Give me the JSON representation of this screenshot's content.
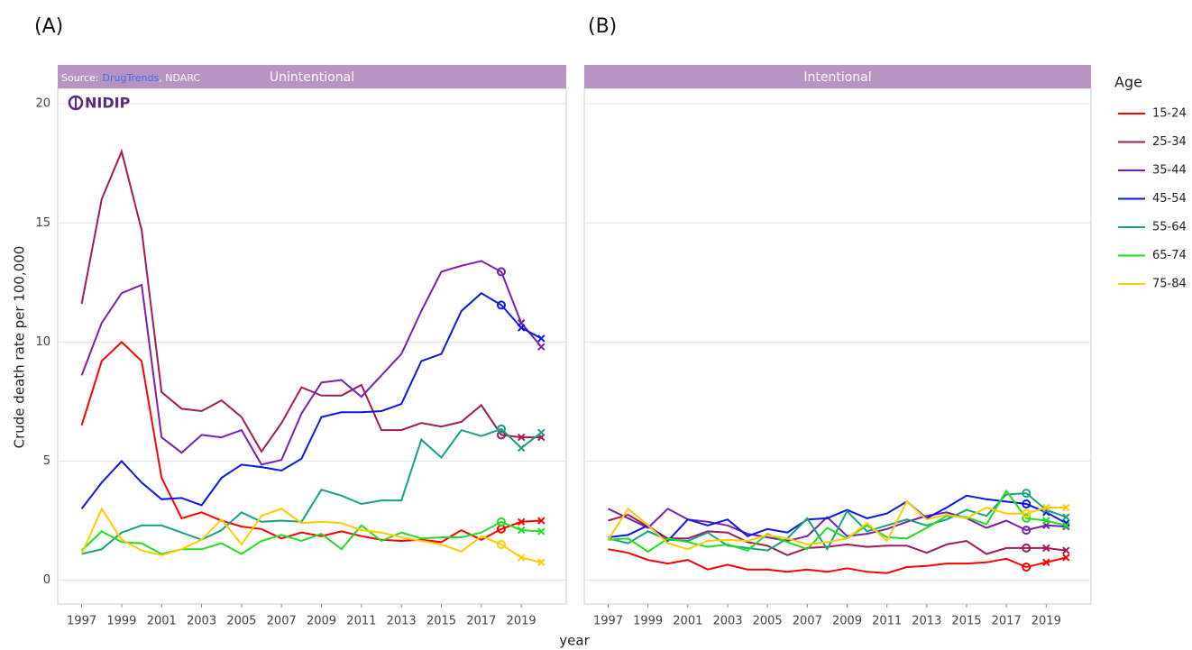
{
  "panel_labels": [
    "(A)",
    "(B)"
  ],
  "y_label": "Crude death rate per 100,000",
  "x_label": "year",
  "legend_title": "Age",
  "source": {
    "prefix": "Source:",
    "link": "DrugTrends",
    "suffix": ", NDARC"
  },
  "logo": "NIDIP",
  "chart_data": [
    {
      "type": "line",
      "title": "Unintentional",
      "x": [
        1997,
        1998,
        1999,
        2000,
        2001,
        2002,
        2003,
        2004,
        2005,
        2006,
        2007,
        2008,
        2009,
        2010,
        2011,
        2012,
        2013,
        2014,
        2015,
        2016,
        2017,
        2018,
        2019,
        2020
      ],
      "xlim": [
        1995.8,
        2021.25
      ],
      "ylim": [
        -1,
        20.65
      ],
      "xticks": [
        1997,
        1999,
        2001,
        2003,
        2005,
        2007,
        2009,
        2011,
        2013,
        2015,
        2017,
        2019
      ],
      "yticks": [
        0,
        5,
        10,
        15,
        20
      ],
      "grid": true,
      "marker_x": [
        2018,
        2019,
        2020
      ],
      "marker_shapes": [
        "circle",
        "cross",
        "cross"
      ],
      "series": [
        {
          "name": "15-24",
          "color": "#ff0000",
          "values": [
            6.5,
            9.2,
            10.0,
            9.2,
            4.3,
            2.6,
            2.85,
            2.5,
            2.25,
            2.15,
            1.75,
            2.0,
            1.85,
            2.05,
            1.85,
            1.7,
            1.65,
            1.7,
            1.6,
            2.1,
            1.7,
            2.15,
            2.45,
            2.5
          ]
        },
        {
          "name": "25-34",
          "color": "#a3195b",
          "values": [
            11.6,
            16.0,
            18.0,
            14.7,
            7.9,
            7.2,
            7.1,
            7.55,
            6.85,
            5.4,
            6.6,
            8.1,
            7.75,
            7.75,
            8.2,
            6.3,
            6.3,
            6.6,
            6.45,
            6.65,
            7.35,
            6.1,
            6.0,
            6.0
          ]
        },
        {
          "name": "35-44",
          "color": "#7a1fb0",
          "values": [
            8.6,
            10.8,
            12.05,
            12.4,
            6.0,
            5.35,
            6.1,
            6.0,
            6.3,
            4.85,
            5.05,
            7.0,
            8.3,
            8.4,
            7.7,
            8.6,
            9.5,
            11.3,
            12.95,
            13.2,
            13.4,
            12.95,
            10.8,
            9.8
          ]
        },
        {
          "name": "45-54",
          "color": "#0a17e8",
          "values": [
            3.0,
            4.1,
            5.0,
            4.1,
            3.4,
            3.45,
            3.15,
            4.3,
            4.85,
            4.75,
            4.6,
            5.1,
            6.85,
            7.05,
            7.05,
            7.1,
            7.4,
            9.2,
            9.5,
            11.3,
            12.05,
            11.55,
            10.6,
            10.15
          ]
        },
        {
          "name": "55-64",
          "color": "#17a085",
          "values": [
            1.1,
            1.3,
            2.0,
            2.3,
            2.3,
            2.0,
            1.7,
            2.1,
            2.85,
            2.45,
            2.5,
            2.45,
            3.8,
            3.55,
            3.2,
            3.35,
            3.35,
            5.9,
            5.15,
            6.3,
            6.05,
            6.35,
            5.55,
            6.2
          ]
        },
        {
          "name": "65-74",
          "color": "#22dd22",
          "values": [
            1.25,
            2.05,
            1.6,
            1.55,
            1.1,
            1.3,
            1.3,
            1.55,
            1.1,
            1.65,
            1.9,
            1.65,
            1.95,
            1.3,
            2.3,
            1.65,
            2.0,
            1.75,
            1.8,
            1.8,
            2.0,
            2.45,
            2.1,
            2.05
          ]
        },
        {
          "name": "75-84",
          "color": "#ffcc00",
          "values": [
            1.1,
            3.0,
            1.7,
            1.25,
            1.05,
            1.3,
            1.7,
            2.55,
            1.5,
            2.7,
            3.0,
            2.4,
            2.45,
            2.4,
            2.1,
            2.0,
            1.8,
            1.65,
            1.5,
            1.2,
            1.85,
            1.5,
            0.95,
            0.75
          ]
        }
      ]
    },
    {
      "type": "line",
      "title": "Intentional",
      "x": [
        1997,
        1998,
        1999,
        2000,
        2001,
        2002,
        2003,
        2004,
        2005,
        2006,
        2007,
        2008,
        2009,
        2010,
        2011,
        2012,
        2013,
        2014,
        2015,
        2016,
        2017,
        2018,
        2019,
        2020
      ],
      "xlim": [
        1995.8,
        2021.25
      ],
      "ylim": [
        -1,
        20.65
      ],
      "xticks": [
        1997,
        1999,
        2001,
        2003,
        2005,
        2007,
        2009,
        2011,
        2013,
        2015,
        2017,
        2019
      ],
      "yticks": [
        0,
        5,
        10,
        15,
        20
      ],
      "grid": true,
      "marker_x": [
        2018,
        2019,
        2020
      ],
      "marker_shapes": [
        "circle",
        "cross",
        "cross"
      ],
      "series": [
        {
          "name": "15-24",
          "color": "#ff0000",
          "values": [
            1.3,
            1.15,
            0.85,
            0.7,
            0.85,
            0.45,
            0.65,
            0.45,
            0.45,
            0.35,
            0.45,
            0.35,
            0.5,
            0.35,
            0.3,
            0.55,
            0.6,
            0.7,
            0.7,
            0.75,
            0.9,
            0.55,
            0.75,
            0.95
          ]
        },
        {
          "name": "25-34",
          "color": "#a3195b",
          "values": [
            2.5,
            2.75,
            2.25,
            1.75,
            1.75,
            2.05,
            2.0,
            1.6,
            1.45,
            1.05,
            1.35,
            1.4,
            1.5,
            1.4,
            1.45,
            1.45,
            1.15,
            1.5,
            1.65,
            1.1,
            1.35,
            1.35,
            1.35,
            1.25
          ]
        },
        {
          "name": "35-44",
          "color": "#7a1fb0",
          "values": [
            3.0,
            2.6,
            2.2,
            3.0,
            2.55,
            2.45,
            2.3,
            1.95,
            1.8,
            1.65,
            1.85,
            2.65,
            1.85,
            1.95,
            2.15,
            2.45,
            2.7,
            2.85,
            2.6,
            2.2,
            2.5,
            2.1,
            2.3,
            2.25
          ]
        },
        {
          "name": "45-54",
          "color": "#0a17e8",
          "values": [
            1.8,
            1.9,
            2.3,
            1.65,
            2.55,
            2.3,
            2.55,
            1.85,
            2.15,
            2.0,
            2.55,
            2.6,
            2.95,
            2.6,
            2.8,
            3.3,
            2.6,
            3.05,
            3.55,
            3.4,
            3.3,
            3.2,
            2.85,
            2.4
          ]
        },
        {
          "name": "55-64",
          "color": "#17a085",
          "values": [
            1.75,
            1.55,
            2.05,
            1.7,
            1.65,
            2.0,
            1.45,
            1.35,
            1.25,
            1.75,
            2.6,
            1.3,
            2.9,
            2.05,
            2.3,
            2.55,
            2.3,
            2.55,
            2.95,
            2.7,
            3.6,
            3.65,
            2.95,
            2.65
          ]
        },
        {
          "name": "65-74",
          "color": "#22dd22",
          "values": [
            1.7,
            1.75,
            1.2,
            1.75,
            1.6,
            1.4,
            1.5,
            1.25,
            1.95,
            1.6,
            1.3,
            2.2,
            1.75,
            2.3,
            1.8,
            1.75,
            2.2,
            2.7,
            2.65,
            2.35,
            3.75,
            2.6,
            2.5,
            2.3
          ]
        },
        {
          "name": "75-84",
          "color": "#ffcc00",
          "values": [
            1.7,
            3.0,
            2.3,
            1.55,
            1.3,
            1.65,
            1.7,
            1.65,
            1.9,
            1.75,
            1.5,
            1.6,
            1.75,
            2.4,
            1.65,
            3.3,
            2.55,
            2.75,
            2.6,
            3.05,
            2.8,
            2.8,
            3.05,
            3.05
          ]
        }
      ]
    }
  ]
}
